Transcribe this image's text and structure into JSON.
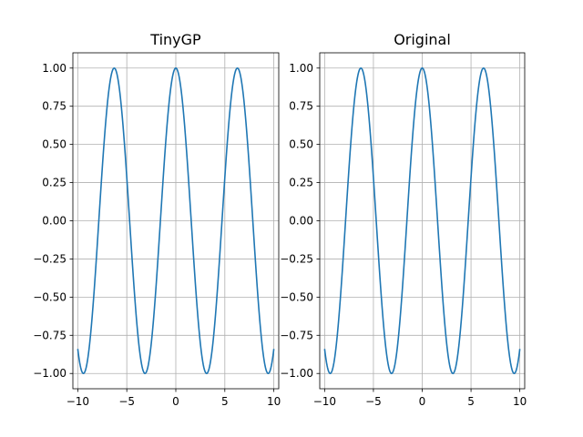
{
  "colors": {
    "line": "#1f77b4",
    "grid": "#b0b0b0",
    "axes": "#000000",
    "background": "#ffffff"
  },
  "chart_data": [
    {
      "type": "line",
      "title": "TinyGP",
      "xlabel": "",
      "ylabel": "",
      "xlim": [
        -10.5,
        10.5
      ],
      "ylim": [
        -1.1,
        1.1
      ],
      "xticks": [
        -10,
        -5,
        0,
        5,
        10
      ],
      "xtick_labels": [
        "−10",
        "−5",
        "0",
        "5",
        "10"
      ],
      "yticks": [
        1.0,
        0.75,
        0.5,
        0.25,
        0.0,
        -0.25,
        -0.5,
        -0.75,
        -1.0
      ],
      "ytick_labels": [
        "1.00",
        "0.75",
        "0.50",
        "0.25",
        "0.00",
        "−0.25",
        "−0.50",
        "−0.75",
        "−1.00"
      ],
      "grid": true,
      "series": [
        {
          "x": [
            -10,
            -9.5,
            -9,
            -8.5,
            -8,
            -7.5,
            -7,
            -6.5,
            -6,
            -5.5,
            -5,
            -4.5,
            -4,
            -3.5,
            -3,
            -2.5,
            -2,
            -1.5,
            -1,
            -0.5,
            0,
            0.5,
            1,
            1.5,
            2,
            2.5,
            3,
            3.5,
            4,
            4.5,
            5,
            5.5,
            6,
            6.5,
            7,
            7.5,
            8,
            8.5,
            9,
            9.5,
            10
          ],
          "y": [
            -0.839,
            -0.997,
            -0.911,
            -0.602,
            -0.146,
            0.347,
            0.754,
            0.977,
            0.96,
            0.709,
            0.284,
            -0.211,
            -0.654,
            -0.936,
            -0.99,
            -0.801,
            -0.416,
            0.071,
            0.54,
            0.878,
            1.0,
            0.878,
            0.54,
            0.071,
            -0.416,
            -0.801,
            -0.99,
            -0.936,
            -0.654,
            -0.211,
            0.284,
            0.709,
            0.96,
            0.977,
            0.754,
            0.347,
            -0.146,
            -0.602,
            -0.911,
            -0.997,
            -0.839
          ]
        }
      ]
    },
    {
      "type": "line",
      "title": "Original",
      "xlabel": "",
      "ylabel": "",
      "xlim": [
        -10.5,
        10.5
      ],
      "ylim": [
        -1.1,
        1.1
      ],
      "xticks": [
        -10,
        -5,
        0,
        5,
        10
      ],
      "xtick_labels": [
        "−10",
        "−5",
        "0",
        "5",
        "10"
      ],
      "yticks": [
        1.0,
        0.75,
        0.5,
        0.25,
        0.0,
        -0.25,
        -0.5,
        -0.75,
        -1.0
      ],
      "ytick_labels": [
        "1.00",
        "0.75",
        "0.50",
        "0.25",
        "0.00",
        "−0.25",
        "−0.50",
        "−0.75",
        "−1.00"
      ],
      "grid": true,
      "series": [
        {
          "x": [
            -10,
            -9.5,
            -9,
            -8.5,
            -8,
            -7.5,
            -7,
            -6.5,
            -6,
            -5.5,
            -5,
            -4.5,
            -4,
            -3.5,
            -3,
            -2.5,
            -2,
            -1.5,
            -1,
            -0.5,
            0,
            0.5,
            1,
            1.5,
            2,
            2.5,
            3,
            3.5,
            4,
            4.5,
            5,
            5.5,
            6,
            6.5,
            7,
            7.5,
            8,
            8.5,
            9,
            9.5,
            10
          ],
          "y": [
            -0.839,
            -0.997,
            -0.911,
            -0.602,
            -0.146,
            0.347,
            0.754,
            0.977,
            0.96,
            0.709,
            0.284,
            -0.211,
            -0.654,
            -0.936,
            -0.99,
            -0.801,
            -0.416,
            0.071,
            0.54,
            0.878,
            1.0,
            0.878,
            0.54,
            0.071,
            -0.416,
            -0.801,
            -0.99,
            -0.936,
            -0.654,
            -0.211,
            0.284,
            0.709,
            0.96,
            0.977,
            0.754,
            0.347,
            -0.146,
            -0.602,
            -0.911,
            -0.997,
            -0.839
          ]
        }
      ]
    }
  ]
}
